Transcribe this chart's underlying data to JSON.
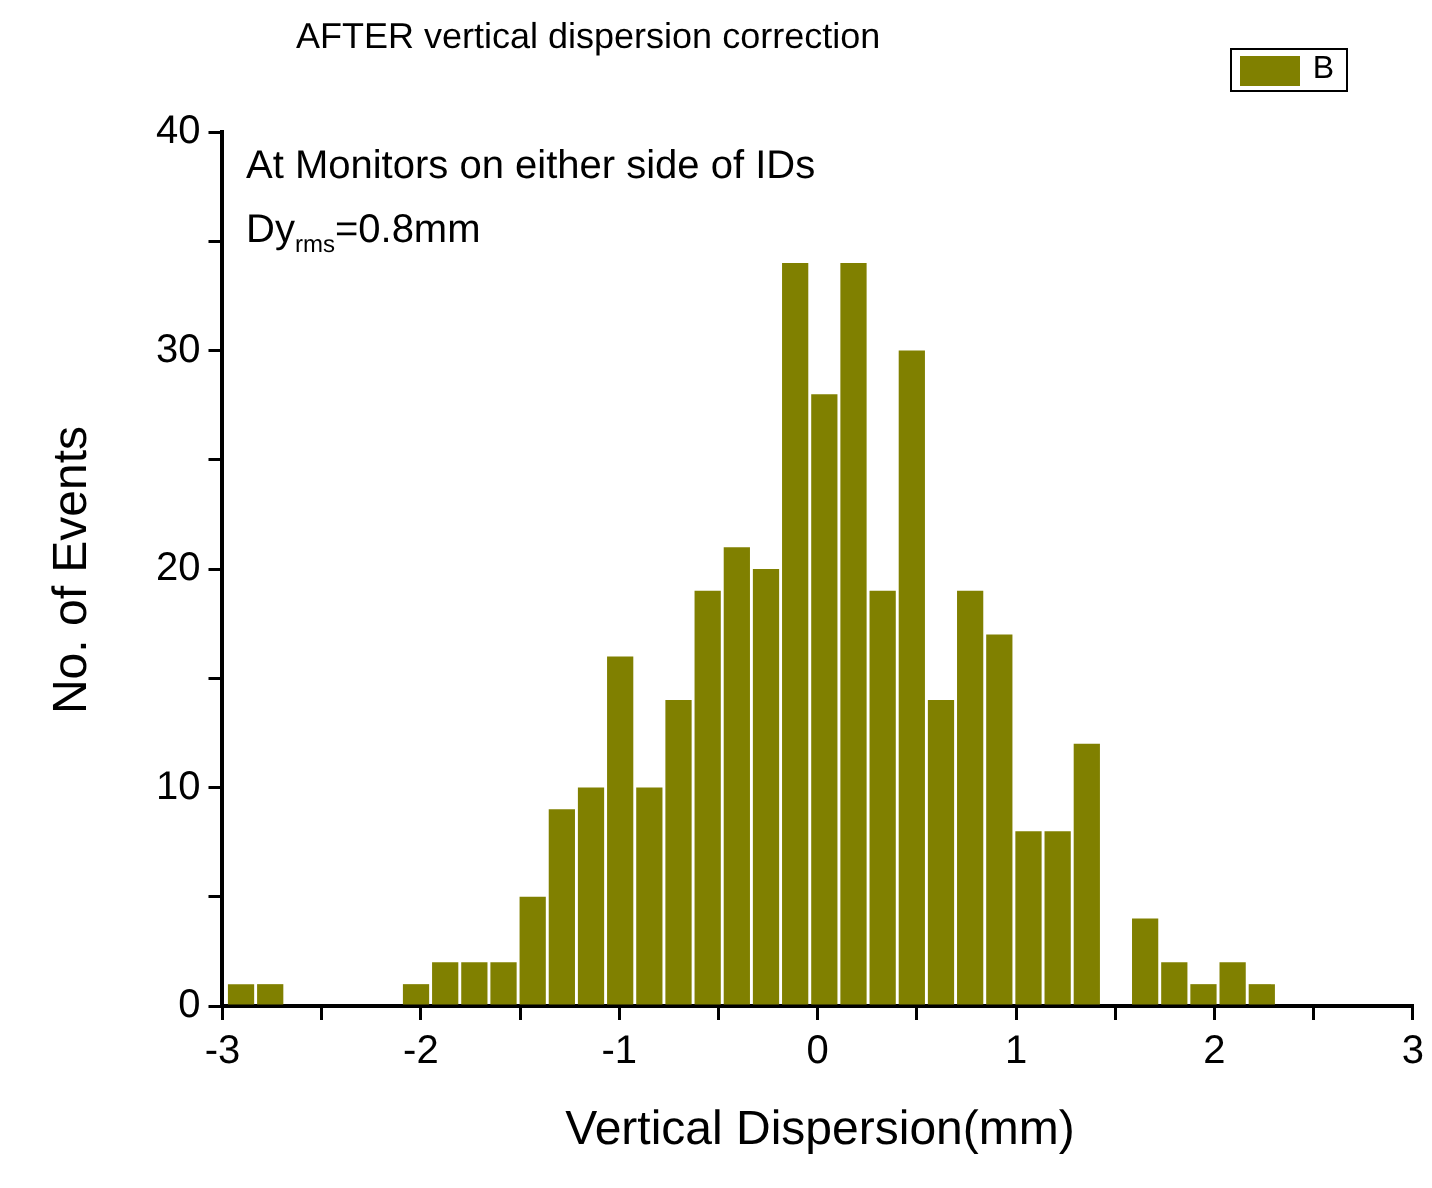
{
  "chart_data": {
    "type": "histogram",
    "title": "AFTER vertical dispersion correction",
    "xlabel": "Vertical Dispersion(mm)",
    "ylabel": "No. of Events",
    "annotations": [
      "At Monitors on either side of IDs",
      "Dy$_{rms}$=0.8mm"
    ],
    "bins": [
      -2.98,
      -2.833,
      -2.686,
      -2.539,
      -2.392,
      -2.245,
      -2.098,
      -1.951,
      -1.804,
      -1.657,
      -1.51,
      -1.363,
      -1.216,
      -1.069,
      -0.922,
      -0.775,
      -0.628,
      -0.481,
      -0.334,
      -0.187,
      -0.04,
      0.107,
      0.254,
      0.401,
      0.548,
      0.695,
      0.842,
      0.989,
      1.136,
      1.283,
      1.43,
      1.577,
      1.724,
      1.871,
      2.018,
      2.165,
      2.312
    ],
    "series": [
      {
        "name": "B",
        "color": "#808000",
        "values": [
          1,
          1,
          0,
          0,
          0,
          0,
          1,
          2,
          2,
          2,
          5,
          9,
          10,
          16,
          10,
          14,
          19,
          21,
          20,
          34,
          28,
          34,
          19,
          30,
          14,
          19,
          17,
          8,
          8,
          12,
          0,
          4,
          2,
          1,
          2,
          1
        ]
      }
    ],
    "xlim": [
      -3,
      3
    ],
    "ylim": [
      0,
      40
    ],
    "xticks": [
      -3,
      {
        "value": -2.5,
        "label": null
      },
      -2,
      {
        "value": -1.5,
        "label": null
      },
      -1,
      {
        "value": -0.5,
        "label": null
      },
      0,
      {
        "value": 0.5,
        "label": null
      },
      1,
      {
        "value": 1.5,
        "label": null
      },
      2,
      {
        "value": 2.5,
        "label": null
      },
      3
    ],
    "yticks": [
      0,
      {
        "value": 5,
        "label": null
      },
      10,
      {
        "value": 15,
        "label": null
      },
      20,
      {
        "value": 25,
        "label": null
      },
      30,
      {
        "value": 35,
        "label": null
      },
      40
    ],
    "grid": false,
    "legend": "top right"
  }
}
